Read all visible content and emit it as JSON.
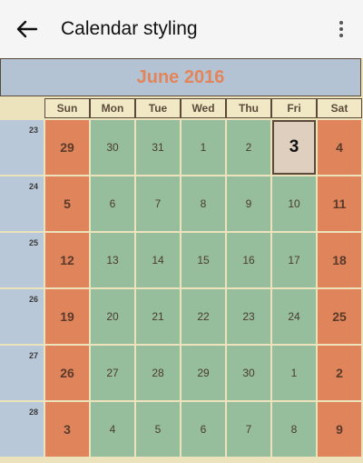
{
  "appbar": {
    "title": "Calendar styling",
    "back_icon": "arrow-left-icon",
    "menu_icon": "more-vertical-icon"
  },
  "calendar": {
    "month_label": "June 2016",
    "day_headers": [
      "Sun",
      "Mon",
      "Tue",
      "Wed",
      "Thu",
      "Fri",
      "Sat"
    ],
    "week_numbers": [
      "23",
      "24",
      "25",
      "26",
      "27",
      "28"
    ],
    "weeks": [
      [
        "29",
        "30",
        "31",
        "1",
        "2",
        "3",
        "4"
      ],
      [
        "5",
        "6",
        "7",
        "8",
        "9",
        "10",
        "11"
      ],
      [
        "12",
        "13",
        "14",
        "15",
        "16",
        "17",
        "18"
      ],
      [
        "19",
        "20",
        "21",
        "22",
        "23",
        "24",
        "25"
      ],
      [
        "26",
        "27",
        "28",
        "29",
        "30",
        "1",
        "2"
      ],
      [
        "3",
        "4",
        "5",
        "6",
        "7",
        "8",
        "9"
      ]
    ],
    "today": "3",
    "colors": {
      "weekend": "#df845b",
      "weekday": "#96be9c",
      "week_number_column": "#b9c8d8",
      "month_header": "#b4c3d3",
      "month_text": "#e3855a",
      "today": "#dfcfbf"
    }
  }
}
